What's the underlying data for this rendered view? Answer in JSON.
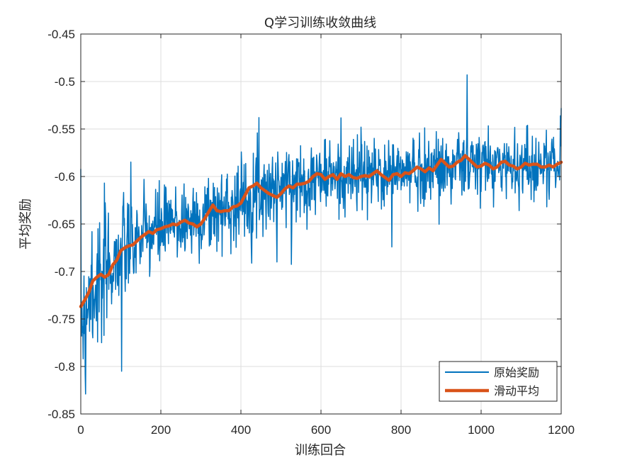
{
  "chart_data": {
    "type": "line",
    "title": "Q学习训练收敛曲线",
    "xlabel": "训练回合",
    "ylabel": "平均奖励",
    "xlim": [
      0,
      1200
    ],
    "ylim": [
      -0.85,
      -0.45
    ],
    "xticks": [
      0,
      200,
      400,
      600,
      800,
      1000,
      1200
    ],
    "xtick_labels": [
      "0",
      "200",
      "400",
      "600",
      "800",
      "1000",
      "1200"
    ],
    "yticks": [
      -0.85,
      -0.8,
      -0.75,
      -0.7,
      -0.65,
      -0.6,
      -0.55,
      -0.5,
      -0.45
    ],
    "ytick_labels": [
      "-0.85",
      "-0.8",
      "-0.75",
      "-0.7",
      "-0.65",
      "-0.6",
      "-0.55",
      "-0.5",
      "-0.45"
    ],
    "grid": true,
    "legend_position": "bottom-right",
    "series": [
      {
        "name": "原始奖励",
        "color": "#0072BD",
        "line_width": 1.5,
        "noise_seed": 7,
        "trend_anchors": {
          "x": [
            0,
            50,
            100,
            150,
            200,
            250,
            300,
            350,
            400,
            450,
            500,
            550,
            600,
            650,
            700,
            750,
            800,
            850,
            900,
            950,
            1000,
            1050,
            1100,
            1150,
            1200
          ],
          "y": [
            -0.74,
            -0.705,
            -0.68,
            -0.665,
            -0.655,
            -0.648,
            -0.643,
            -0.635,
            -0.625,
            -0.615,
            -0.61,
            -0.605,
            -0.6,
            -0.6,
            -0.6,
            -0.598,
            -0.595,
            -0.593,
            -0.59,
            -0.588,
            -0.588,
            -0.588,
            -0.588,
            -0.588,
            -0.585
          ]
        },
        "noise_sigma": {
          "x": [
            0,
            100,
            200,
            500,
            1200
          ],
          "y": [
            0.038,
            0.028,
            0.022,
            0.02,
            0.018
          ]
        },
        "spikes": [
          {
            "x": 6,
            "y": -0.792
          },
          {
            "x": 12,
            "y": -0.829
          },
          {
            "x": 28,
            "y": -0.658
          },
          {
            "x": 43,
            "y": -0.655
          },
          {
            "x": 52,
            "y": -0.775
          },
          {
            "x": 102,
            "y": -0.805
          },
          {
            "x": 445,
            "y": -0.538
          },
          {
            "x": 490,
            "y": -0.69
          },
          {
            "x": 700,
            "y": -0.548
          },
          {
            "x": 965,
            "y": -0.493
          },
          {
            "x": 1200,
            "y": -0.528
          }
        ]
      },
      {
        "name": "滑动平均",
        "color": "#D95319",
        "line_width": 4.5,
        "x": [
          0,
          10,
          20,
          30,
          40,
          50,
          60,
          70,
          80,
          90,
          100,
          110,
          120,
          130,
          140,
          150,
          160,
          170,
          180,
          190,
          200,
          210,
          220,
          230,
          240,
          250,
          260,
          270,
          280,
          290,
          300,
          310,
          320,
          330,
          340,
          350,
          360,
          370,
          380,
          390,
          400,
          410,
          420,
          430,
          440,
          450,
          460,
          470,
          480,
          490,
          500,
          510,
          520,
          530,
          540,
          550,
          560,
          570,
          580,
          590,
          600,
          610,
          620,
          630,
          640,
          650,
          660,
          670,
          680,
          690,
          700,
          710,
          720,
          730,
          740,
          750,
          760,
          770,
          780,
          790,
          800,
          810,
          820,
          830,
          840,
          850,
          860,
          870,
          880,
          890,
          900,
          910,
          920,
          930,
          940,
          950,
          960,
          970,
          980,
          990,
          1000,
          1010,
          1020,
          1030,
          1040,
          1050,
          1060,
          1070,
          1080,
          1090,
          1100,
          1110,
          1120,
          1130,
          1140,
          1150,
          1160,
          1170,
          1180,
          1190,
          1200
        ],
        "y": [
          -0.737,
          -0.73,
          -0.722,
          -0.71,
          -0.706,
          -0.703,
          -0.706,
          -0.703,
          -0.693,
          -0.688,
          -0.678,
          -0.675,
          -0.673,
          -0.672,
          -0.668,
          -0.664,
          -0.661,
          -0.658,
          -0.66,
          -0.656,
          -0.655,
          -0.653,
          -0.652,
          -0.65,
          -0.651,
          -0.648,
          -0.646,
          -0.649,
          -0.65,
          -0.653,
          -0.65,
          -0.644,
          -0.637,
          -0.63,
          -0.636,
          -0.637,
          -0.636,
          -0.636,
          -0.632,
          -0.631,
          -0.628,
          -0.62,
          -0.612,
          -0.61,
          -0.607,
          -0.612,
          -0.615,
          -0.618,
          -0.62,
          -0.622,
          -0.618,
          -0.613,
          -0.61,
          -0.612,
          -0.608,
          -0.608,
          -0.607,
          -0.605,
          -0.6,
          -0.597,
          -0.598,
          -0.603,
          -0.6,
          -0.598,
          -0.603,
          -0.597,
          -0.6,
          -0.598,
          -0.601,
          -0.602,
          -0.6,
          -0.599,
          -0.6,
          -0.597,
          -0.594,
          -0.598,
          -0.601,
          -0.604,
          -0.598,
          -0.597,
          -0.6,
          -0.596,
          -0.597,
          -0.594,
          -0.59,
          -0.592,
          -0.595,
          -0.591,
          -0.594,
          -0.588,
          -0.582,
          -0.586,
          -0.59,
          -0.589,
          -0.585,
          -0.583,
          -0.578,
          -0.582,
          -0.586,
          -0.59,
          -0.589,
          -0.586,
          -0.588,
          -0.592,
          -0.59,
          -0.585,
          -0.584,
          -0.588,
          -0.589,
          -0.592,
          -0.59,
          -0.586,
          -0.588,
          -0.587,
          -0.587,
          -0.59,
          -0.59,
          -0.588,
          -0.59,
          -0.587,
          -0.585
        ]
      }
    ]
  }
}
